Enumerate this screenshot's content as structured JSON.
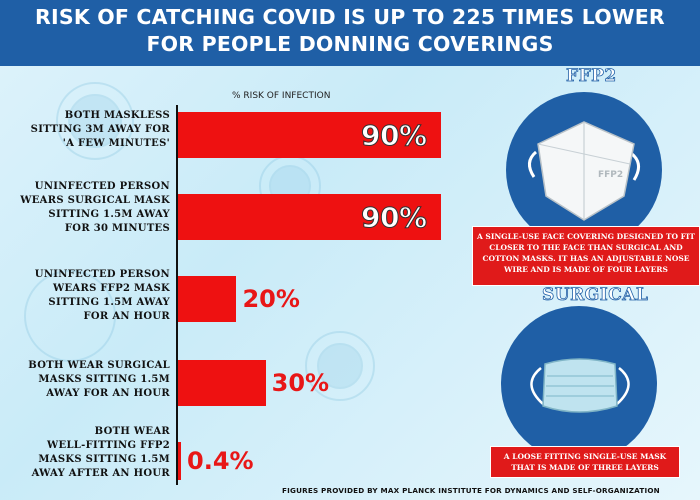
{
  "header": {
    "line1": "RISK OF CATCHING COVID IS UP TO 225 TIMES LOWER",
    "line2": "FOR PEOPLE DONNING COVERINGS"
  },
  "chart_data": {
    "type": "bar",
    "orientation": "horizontal",
    "title": "RISK OF CATCHING COVID IS UP TO 225 TIMES LOWER FOR PEOPLE DONNING COVERINGS",
    "xlabel": "% RISK OF INFECTION",
    "xlim": [
      0,
      100
    ],
    "categories": [
      "BOTH MASKLESS\nSITTING 3M AWAY FOR\n'A FEW MINUTES'",
      "UNINFECTED PERSON\nWEARS SURGICAL MASK\nSITTING 1.5M AWAY\nFOR 30 MINUTES",
      "UNINFECTED PERSON\nWEARS FFP2 MASK\nSITTING 1.5M AWAY\nFOR AN HOUR",
      "BOTH WEAR SURGICAL\nMASKS SITTING 1.5M\nAWAY FOR AN HOUR",
      "BOTH WEAR\nWELL-FITTING FFP2\nMASKS SITTING 1.5M\nAWAY AFTER AN HOUR"
    ],
    "values": [
      90,
      90,
      20,
      30,
      0.4
    ],
    "value_labels": [
      "90%",
      "90%",
      "20%",
      "30%",
      "0.4%"
    ],
    "bar_color": "#ee1111",
    "grid": false
  },
  "panel": {
    "ffp2_title": "FFP2",
    "ffp2_mask_label": "FFP2",
    "ffp2_caption": "A SINGLE-USE FACE COVERING DESIGNED TO FIT CLOSER TO THE FACE THAN SURGICAL AND COTTON MASKS. IT HAS AN ADJUSTABLE NOSE WIRE AND IS MADE OF FOUR LAYERS",
    "surgical_title": "SURGICAL",
    "surgical_caption": "A LOOSE FITTING SINGLE-USE MASK THAT IS MADE OF THREE LAYERS"
  },
  "footer": "FIGURES PROVIDED BY MAX PLANCK INSTITUTE FOR DYNAMICS AND SELF-ORGANIZATION",
  "colors": {
    "header_bg": "#1f5fa6",
    "bar": "#ee1111",
    "caption_bg": "#e01a1a",
    "background": "#d6eff9"
  }
}
